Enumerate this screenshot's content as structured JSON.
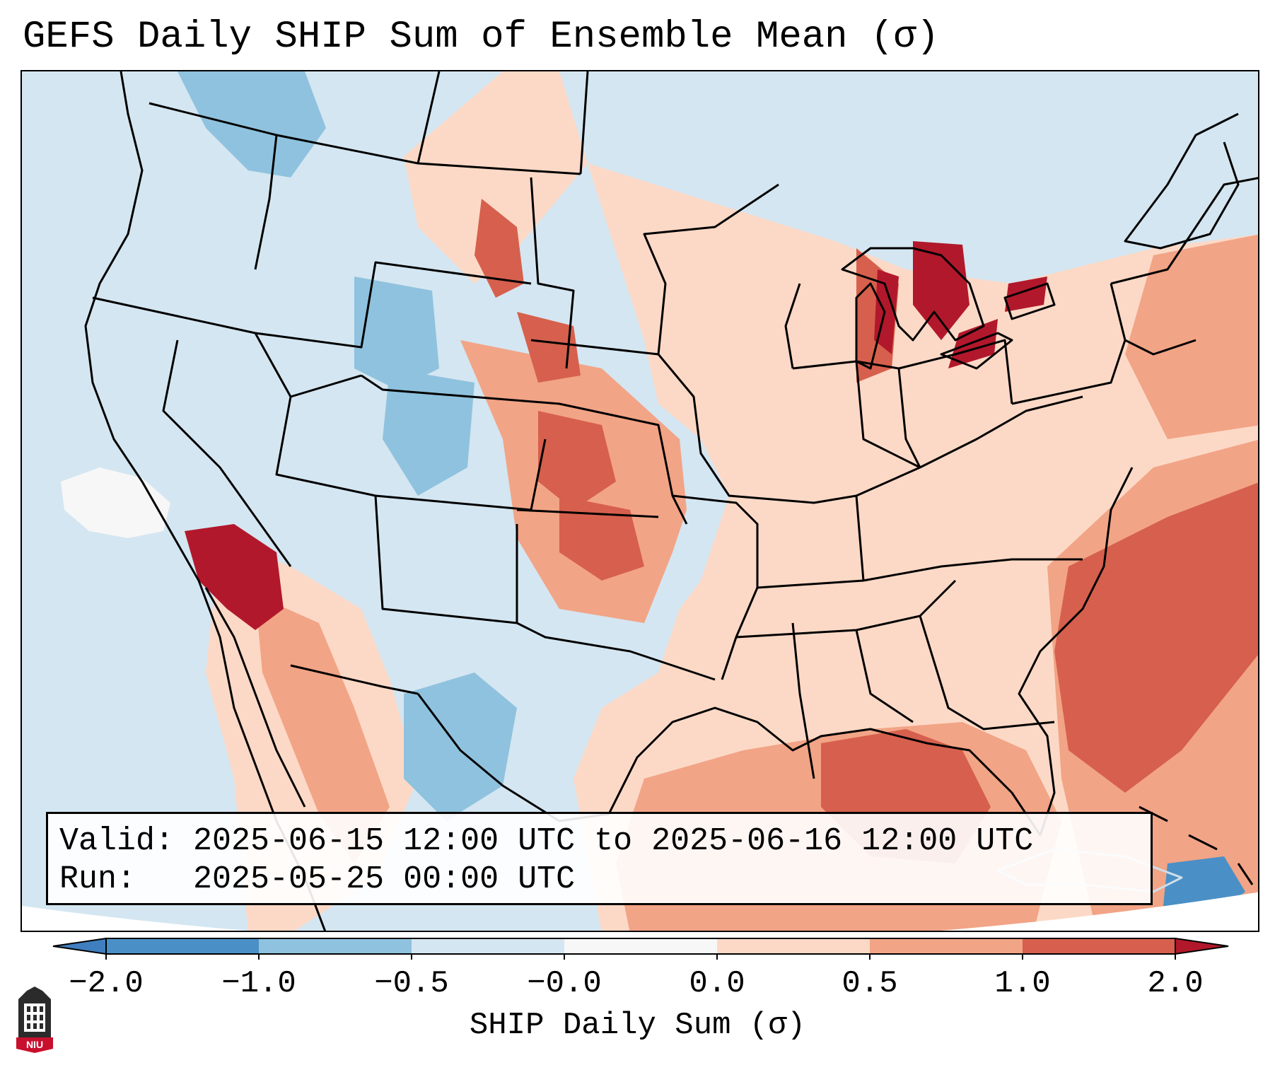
{
  "title": "GEFS Daily SHIP Sum of Ensemble Mean (σ)",
  "info": {
    "valid": "Valid: 2025-06-15 12:00 UTC to 2025-06-16 12:00 UTC",
    "run": "Run:   2025-05-25 00:00 UTC"
  },
  "colorbar": {
    "label": "SHIP Daily Sum (σ)",
    "ticks": [
      "−2.0",
      "−1.0",
      "−0.5",
      "−0.0",
      "0.0",
      "0.5",
      "1.0",
      "2.0"
    ],
    "colors": [
      "#4a90c6",
      "#8fc2de",
      "#d4e6f1",
      "#f7f7f7",
      "#fcd9c6",
      "#f2a486",
      "#d6604d",
      "#b2182b"
    ],
    "extend_low": "#3f7fbf",
    "extend_high": "#b2182b"
  },
  "logo": {
    "text": "NIU",
    "icon": "university-tower-icon"
  }
}
